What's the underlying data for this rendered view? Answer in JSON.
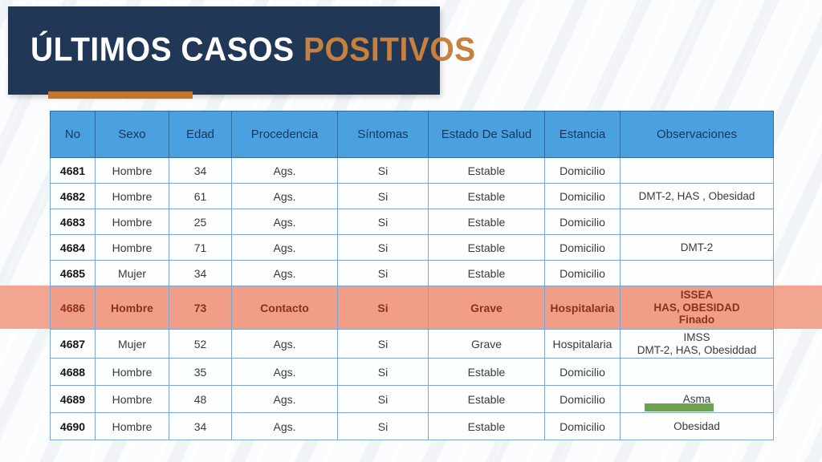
{
  "title": {
    "part1": "ÚLTIMOS CASOS ",
    "part2": "POSITIVOS"
  },
  "colors": {
    "banner_navy": "#203756",
    "accent_orange": "#c8803c",
    "bar_orange": "#c17530",
    "header_blue": "#4ba1e0",
    "header_text": "#17365d",
    "body_text": "#3a3a3a",
    "border_blue": "#7ba6d4",
    "highlight_salmon": "#f19e88",
    "highlight_text": "#8c2f1f",
    "green_underline": "#6ca24d"
  },
  "table": {
    "columns": [
      "No",
      "Sexo",
      "Edad",
      "Procedencia",
      "Síntomas",
      "Estado De Salud",
      "Estancia",
      "Observaciones"
    ],
    "rows": [
      {
        "no": "4681",
        "sexo": "Hombre",
        "edad": "34",
        "procedencia": "Ags.",
        "sintomas": "Si",
        "estado": "Estable",
        "estancia": "Domicilio",
        "observaciones": [],
        "highlighted": false,
        "green_underline": false
      },
      {
        "no": "4682",
        "sexo": "Hombre",
        "edad": "61",
        "procedencia": "Ags.",
        "sintomas": "Si",
        "estado": "Estable",
        "estancia": "Domicilio",
        "observaciones": [
          "DMT-2, HAS , Obesidad"
        ],
        "highlighted": false,
        "green_underline": false
      },
      {
        "no": "4683",
        "sexo": "Hombre",
        "edad": "25",
        "procedencia": "Ags.",
        "sintomas": "Si",
        "estado": "Estable",
        "estancia": "Domicilio",
        "observaciones": [],
        "highlighted": false,
        "green_underline": false
      },
      {
        "no": "4684",
        "sexo": "Hombre",
        "edad": "71",
        "procedencia": "Ags.",
        "sintomas": "Si",
        "estado": "Estable",
        "estancia": "Domicilio",
        "observaciones": [
          "DMT-2"
        ],
        "highlighted": false,
        "green_underline": false
      },
      {
        "no": "4685",
        "sexo": "Mujer",
        "edad": "34",
        "procedencia": "Ags.",
        "sintomas": "Si",
        "estado": "Estable",
        "estancia": "Domicilio",
        "observaciones": [],
        "highlighted": false,
        "green_underline": false
      },
      {
        "no": "4686",
        "sexo": "Hombre",
        "edad": "73",
        "procedencia": "Contacto",
        "sintomas": "Si",
        "estado": "Grave",
        "estancia": "Hospitalaria",
        "observaciones": [
          "ISSEA",
          "HAS, OBESIDAD",
          "Finado"
        ],
        "highlighted": true,
        "green_underline": false
      },
      {
        "no": "4687",
        "sexo": "Mujer",
        "edad": "52",
        "procedencia": "Ags.",
        "sintomas": "Si",
        "estado": "Grave",
        "estancia": "Hospitalaria",
        "observaciones": [
          "IMSS",
          "DMT-2, HAS, Obesiddad"
        ],
        "highlighted": false,
        "green_underline": false
      },
      {
        "no": "4688",
        "sexo": "Hombre",
        "edad": "35",
        "procedencia": "Ags.",
        "sintomas": "Si",
        "estado": "Estable",
        "estancia": "Domicilio",
        "observaciones": [],
        "highlighted": false,
        "green_underline": false
      },
      {
        "no": "4689",
        "sexo": "Hombre",
        "edad": "48",
        "procedencia": "Ags.",
        "sintomas": "Si",
        "estado": "Estable",
        "estancia": "Domicilio",
        "observaciones": [
          "Asma"
        ],
        "highlighted": false,
        "green_underline": true
      },
      {
        "no": "4690",
        "sexo": "Hombre",
        "edad": "34",
        "procedencia": "Ags.",
        "sintomas": "Si",
        "estado": "Estable",
        "estancia": "Domicilio",
        "observaciones": [
          "Obesidad"
        ],
        "highlighted": false,
        "green_underline": false
      }
    ]
  }
}
